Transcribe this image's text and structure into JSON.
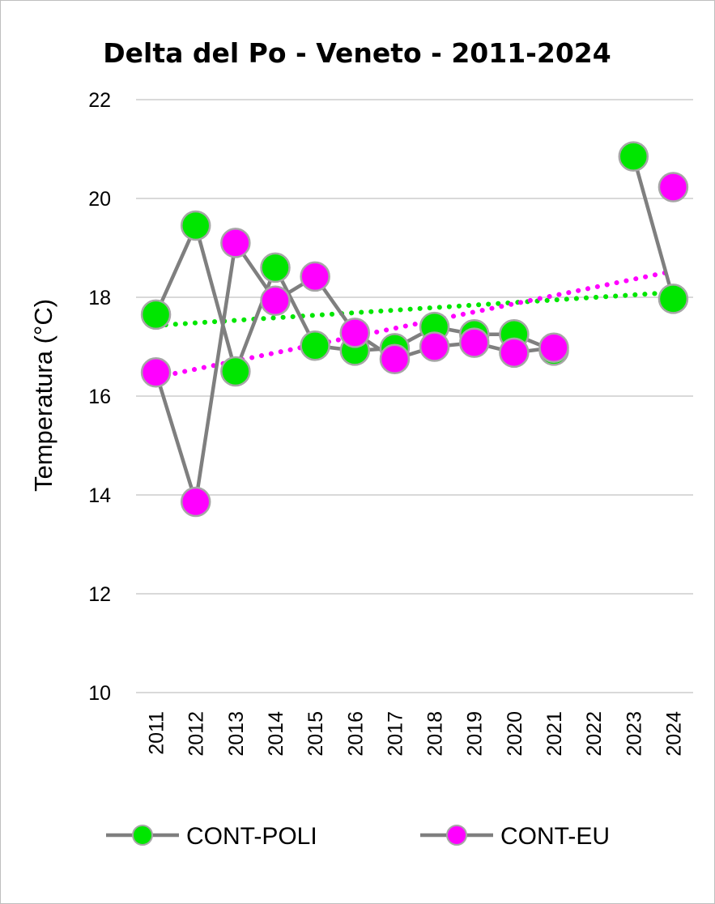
{
  "chart_data": {
    "type": "line",
    "title": "Delta del Po  - Veneto - 2011-2024",
    "xlabel": "",
    "ylabel": "Temperatura (°C)",
    "categories": [
      "2011",
      "2012",
      "2013",
      "2014",
      "2015",
      "2016",
      "2017",
      "2018",
      "2019",
      "2020",
      "2021",
      "2022",
      "2023",
      "2024"
    ],
    "ylim": [
      10,
      22
    ],
    "yticks": [
      "10",
      "12",
      "14",
      "16",
      "18",
      "20",
      "22"
    ],
    "grid": true,
    "legend_position": "bottom",
    "series": [
      {
        "name": "CONT-POLI",
        "color": "#00e600",
        "values": [
          17.65,
          19.45,
          16.5,
          18.6,
          17.02,
          16.92,
          16.97,
          17.4,
          17.25,
          17.25,
          16.92,
          null,
          20.85,
          17.97
        ],
        "trend": [
          17.43,
          18.1
        ]
      },
      {
        "name": "CONT-EU",
        "color": "#ff00ff",
        "values": [
          16.48,
          13.86,
          19.1,
          17.93,
          18.42,
          17.28,
          16.75,
          17.0,
          17.08,
          16.88,
          16.98,
          null,
          null,
          20.23
        ],
        "trend": [
          16.38,
          18.53
        ]
      }
    ],
    "line_color": "#7f7f7f",
    "marker_edge_color": "#a6a6a6"
  }
}
